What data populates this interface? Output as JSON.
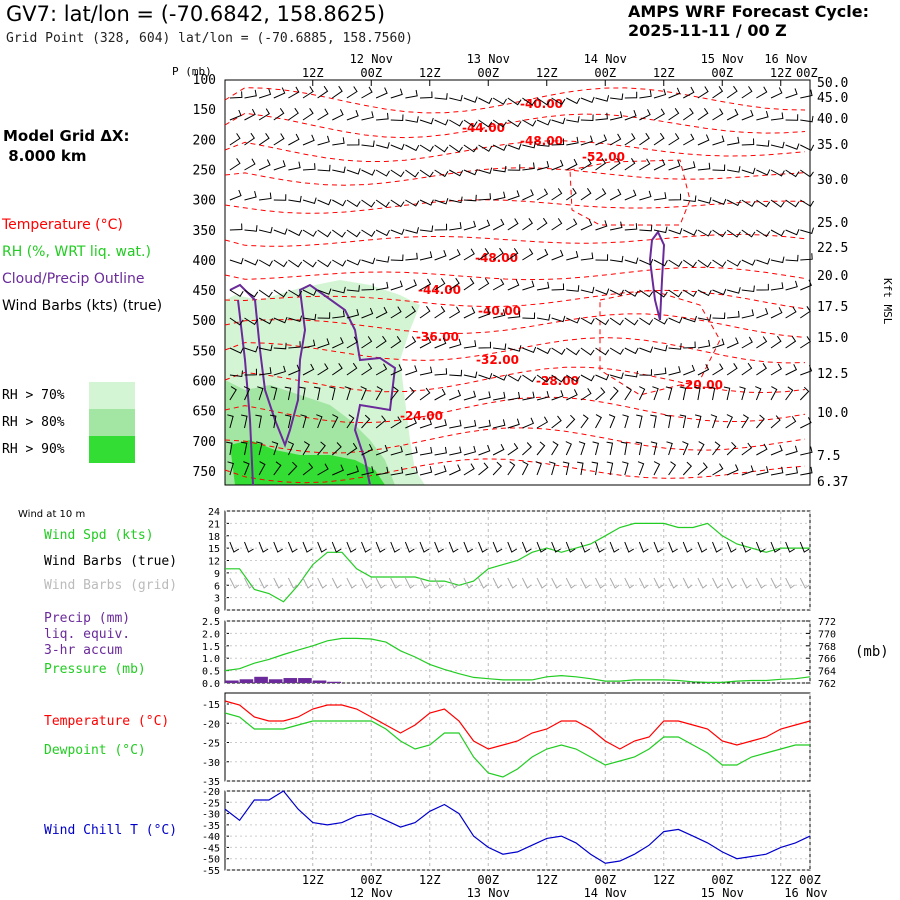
{
  "header": {
    "title": "GV7:  lat/lon = (-70.6842, 158.8625)",
    "subtitle": "Grid Point (328, 604) lat/lon = (-70.6885, 158.7560)",
    "cycle_line1": "AMPS WRF Forecast Cycle:",
    "cycle_line2": "2025-11-11 / 00  Z"
  },
  "model_grid": {
    "line1": "Model Grid ΔX:",
    "line2": " 8.000 km"
  },
  "legend": {
    "temperature": "Temperature (°C)",
    "rh": "RH (%, WRT liq. wat.)",
    "cloud": "Cloud/Precip Outline",
    "barbs": "Wind Barbs (kts) (true)",
    "rh70": "RH > 70%",
    "rh80": "RH > 80%",
    "rh90": "RH > 90%"
  },
  "colors": {
    "temperature": "#ff0000",
    "rh": "#22cc22",
    "cloud": "#6a2a9a",
    "barbs": "#000000",
    "rh70": "#d4f5d4",
    "rh80": "#a3e6a3",
    "rh90": "#33dd33",
    "wind_chill": "#0000cc",
    "grid_barbs": "#aaaaaa"
  },
  "time_axis": {
    "top_hours": [
      "12Z",
      "00Z",
      "12Z",
      "00Z",
      "12Z",
      "00Z",
      "12Z",
      "00Z",
      "12Z",
      "00Z"
    ],
    "top_days": [
      "12 Nov",
      "13 Nov",
      "14 Nov",
      "15 Nov",
      "16 Nov"
    ],
    "bottom_hours": [
      "12Z",
      "00Z",
      "12Z",
      "00Z",
      "12Z",
      "00Z",
      "12Z",
      "00Z",
      "12Z",
      "00Z"
    ],
    "bottom_days": [
      "12 Nov",
      "13 Nov",
      "14 Nov",
      "15 Nov",
      "16 Nov"
    ]
  },
  "chart_data": [
    {
      "type": "line",
      "panel": "cross-section",
      "ylabel_left": "P (mb)",
      "ylabel_right": "Kft MSL",
      "pressure_ticks": [
        "100",
        "150",
        "200",
        "250",
        "300",
        "350",
        "400",
        "450",
        "500",
        "550",
        "600",
        "650",
        "700",
        "750"
      ],
      "height_ticks": [
        "50.0",
        "45.0",
        "40.0",
        "35.0",
        "30.0",
        "25.0",
        "22.5",
        "20.0",
        "17.5",
        "15.0",
        "12.5",
        "10.0",
        "7.5",
        "6.37"
      ],
      "temperature_labels": [
        "-40.00",
        "-44.00",
        "-48.00",
        "-52.00",
        "-48.00",
        "-44.00",
        "-40.00",
        "-36.00",
        "-32.00",
        "-28.00",
        "-24.00",
        "-20.00"
      ]
    },
    {
      "type": "line",
      "panel": "surface-wind",
      "title": "Wind at 10 m",
      "labels": {
        "speed": "Wind Spd (kts)",
        "barbs_true": "Wind Barbs (true)",
        "barbs_grid": "Wind Barbs (grid)"
      },
      "yticks": [
        "24",
        "21",
        "18",
        "15",
        "12",
        "9",
        "6",
        "3",
        "0"
      ],
      "ylim": [
        0,
        24
      ],
      "x": [
        0,
        3,
        6,
        9,
        12,
        15,
        18,
        21,
        24,
        27,
        30,
        33,
        36,
        39,
        42,
        45,
        48,
        51,
        54,
        57,
        60,
        63,
        66,
        69,
        72,
        75,
        78,
        81,
        84,
        87,
        90,
        93,
        96,
        99,
        102,
        105,
        108,
        111,
        114,
        117,
        120
      ],
      "series": [
        {
          "name": "Wind Spd (kts)",
          "values": [
            10,
            10,
            5,
            4,
            2,
            6,
            11,
            14,
            14,
            10,
            8,
            8,
            8,
            8,
            7,
            7,
            6,
            7,
            10,
            11,
            12,
            14,
            15,
            14,
            15,
            16,
            18,
            20,
            21,
            21,
            21,
            20,
            20,
            21,
            18,
            16,
            15,
            14,
            15,
            15,
            15
          ]
        }
      ]
    },
    {
      "type": "bar",
      "panel": "precip-pressure",
      "labels": {
        "precip": "Precip (mm)",
        "precip2": "liq. equiv.",
        "precip3": "3-hr accum",
        "pressure": "Pressure (mb)"
      },
      "yticks_left": [
        "2.5",
        "2.0",
        "1.5",
        "1.0",
        "0.5",
        "0.0"
      ],
      "yticks_right": [
        "772",
        "770",
        "768",
        "766",
        "764",
        "762"
      ],
      "ylabel_right": "(mb)",
      "ylim": [
        0,
        2.5
      ],
      "pressure_ylim": [
        762,
        772
      ],
      "x": [
        0,
        3,
        6,
        9,
        12,
        15,
        18,
        21,
        24,
        27,
        30,
        33,
        36,
        39,
        42,
        45,
        48,
        51,
        54,
        57,
        60,
        63,
        66,
        69,
        72,
        75,
        78,
        81,
        84,
        87,
        90,
        93,
        96,
        99,
        102,
        105,
        108,
        111,
        114,
        117,
        120
      ],
      "precip": [
        0.1,
        0.15,
        0.25,
        0.15,
        0.2,
        0.2,
        0.1,
        0.05,
        0.0,
        0,
        0,
        0,
        0,
        0,
        0,
        0,
        0,
        0,
        0,
        0,
        0,
        0,
        0,
        0,
        0,
        0,
        0,
        0,
        0,
        0,
        0,
        0,
        0,
        0,
        0,
        0,
        0,
        0,
        0,
        0,
        0
      ],
      "series": [
        {
          "name": "Pressure (mb)",
          "values": [
            764.0,
            764.3,
            765.2,
            765.8,
            766.6,
            767.3,
            768.0,
            768.8,
            769.2,
            769.2,
            769.1,
            768.6,
            767.2,
            766.2,
            765.0,
            764.2,
            763.5,
            762.9,
            762.7,
            762.5,
            762.5,
            762.5,
            763.0,
            763.2,
            763.0,
            762.7,
            762.3,
            762.3,
            762.5,
            762.5,
            762.5,
            762.4,
            762.2,
            762.1,
            762.1,
            762.3,
            762.4,
            762.4,
            762.6,
            762.7,
            763.0
          ]
        }
      ]
    },
    {
      "type": "line",
      "panel": "temperature-dewpoint",
      "labels": {
        "temperature": "Temperature (°C)",
        "dewpoint": "Dewpoint (°C)"
      },
      "yticks": [
        "-15",
        "-20",
        "-25",
        "-30",
        "-35"
      ],
      "ylim": [
        -35,
        -13
      ],
      "x": [
        0,
        3,
        6,
        9,
        12,
        15,
        18,
        21,
        24,
        27,
        30,
        33,
        36,
        39,
        42,
        45,
        48,
        51,
        54,
        57,
        60,
        63,
        66,
        69,
        72,
        75,
        78,
        81,
        84,
        87,
        90,
        93,
        96,
        99,
        102,
        105,
        108,
        111,
        114,
        117,
        120
      ],
      "series": [
        {
          "name": "Temperature (°C)",
          "values": [
            -15,
            -16,
            -19,
            -20,
            -20,
            -19,
            -17,
            -16,
            -16,
            -17,
            -19,
            -21,
            -23,
            -21,
            -18,
            -17,
            -20,
            -25,
            -27,
            -26,
            -25,
            -23,
            -22,
            -20,
            -20,
            -22,
            -25,
            -27,
            -25,
            -24,
            -20,
            -20,
            -21,
            -22,
            -25,
            -26,
            -25,
            -24,
            -22,
            -21,
            -20
          ]
        },
        {
          "name": "Dewpoint (°C)",
          "values": [
            -18,
            -19,
            -22,
            -22,
            -22,
            -21,
            -20,
            -20,
            -20,
            -20,
            -20,
            -22,
            -25,
            -27,
            -26,
            -23,
            -23,
            -29,
            -33,
            -34,
            -32,
            -29,
            -27,
            -26,
            -27,
            -29,
            -31,
            -30,
            -29,
            -27,
            -24,
            -24,
            -26,
            -28,
            -31,
            -31,
            -29,
            -28,
            -27,
            -26,
            -26
          ]
        }
      ]
    },
    {
      "type": "line",
      "panel": "wind-chill",
      "labels": {
        "windchill": "Wind Chill T (°C)"
      },
      "yticks": [
        "-20",
        "-25",
        "-30",
        "-35",
        "-40",
        "-45",
        "-50",
        "-55"
      ],
      "ylim": [
        -55,
        -20
      ],
      "x": [
        0,
        3,
        6,
        9,
        12,
        15,
        18,
        21,
        24,
        27,
        30,
        33,
        36,
        39,
        42,
        45,
        48,
        51,
        54,
        57,
        60,
        63,
        66,
        69,
        72,
        75,
        78,
        81,
        84,
        87,
        90,
        93,
        96,
        99,
        102,
        105,
        108,
        111,
        114,
        117,
        120
      ],
      "series": [
        {
          "name": "Wind Chill T (°C)",
          "values": [
            -28,
            -33,
            -24,
            -24,
            -20,
            -28,
            -34,
            -35,
            -34,
            -31,
            -30,
            -33,
            -36,
            -34,
            -29,
            -26,
            -30,
            -40,
            -45,
            -48,
            -47,
            -44,
            -41,
            -40,
            -43,
            -48,
            -52,
            -51,
            -48,
            -44,
            -38,
            -37,
            -40,
            -43,
            -47,
            -50,
            -49,
            -48,
            -45,
            -43,
            -40
          ]
        }
      ]
    }
  ]
}
